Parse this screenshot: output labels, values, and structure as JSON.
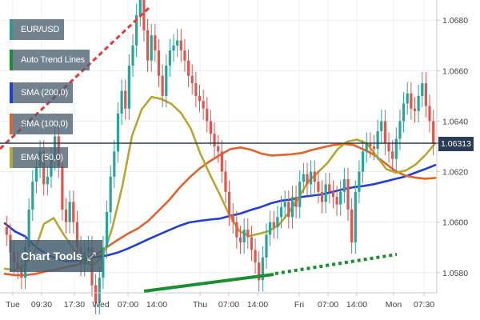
{
  "legend": [
    {
      "label": "EUR/USD",
      "color": "#2a9d8f"
    },
    {
      "label": "Auto Trend Lines",
      "color": "#1a8f2f"
    },
    {
      "label": "SMA (200,0)",
      "color": "#1f3fd6"
    },
    {
      "label": "SMA (100,0)",
      "color": "#e2622b"
    },
    {
      "label": "EMA (50,0)",
      "color": "#b8a630"
    }
  ],
  "chart_tools_label": "Chart Tools",
  "current_price_label": "1.06313",
  "chart_data": {
    "type": "candlestick",
    "symbol": "EUR/USD",
    "y_ticks": [
      "1.0680",
      "1.0660",
      "1.0640",
      "1.0620",
      "1.0600",
      "1.0580"
    ],
    "x_ticks": [
      "Tue",
      "09:30",
      "17:30",
      "Wed",
      "07:00",
      "14:00",
      "Thu",
      "07:00",
      "14:00",
      "Fri",
      "07:00",
      "14:00",
      "Mon",
      "07:30"
    ],
    "ylim": [
      1.0572,
      1.0688
    ],
    "current_price": 1.06313,
    "grid": true,
    "colors": {
      "up": "#26a69a",
      "down": "#e0554c",
      "sma200": "#1f3fd6",
      "sma100": "#e2622b",
      "ema50": "#b8a630",
      "trend_up": "#1a8f2f",
      "trend_resistance": "#e53935"
    },
    "close": [
      1.0595,
      1.0588,
      1.0584,
      1.0582,
      1.0578,
      1.059,
      1.0605,
      1.0616,
      1.0622,
      1.0628,
      1.0615,
      1.0618,
      1.0625,
      1.0634,
      1.0622,
      1.0605,
      1.06,
      1.0608,
      1.06,
      1.059,
      1.0583,
      1.0588,
      1.059,
      1.0575,
      1.0568,
      1.0578,
      1.059,
      1.0604,
      1.0618,
      1.0628,
      1.0643,
      1.0652,
      1.0645,
      1.0662,
      1.067,
      1.0682,
      1.0688,
      1.0676,
      1.0664,
      1.0674,
      1.0668,
      1.0658,
      1.065,
      1.0662,
      1.0668,
      1.067,
      1.0672,
      1.0668,
      1.0664,
      1.0658,
      1.0655,
      1.065,
      1.0648,
      1.0645,
      1.064,
      1.0635,
      1.063,
      1.0628,
      1.062,
      1.0612,
      1.0603,
      1.06,
      1.0594,
      1.0592,
      1.0597,
      1.0594,
      1.0589,
      1.0584,
      1.0577,
      1.0586,
      1.0595,
      1.06,
      1.0598,
      1.0602,
      1.0606,
      1.0608,
      1.0602,
      1.061,
      1.0606,
      1.0616,
      1.0619,
      1.0615,
      1.062,
      1.0616,
      1.0612,
      1.0608,
      1.0615,
      1.0612,
      1.061,
      1.0607,
      1.0612,
      1.0617,
      1.0605,
      1.0592,
      1.0612,
      1.062,
      1.0628,
      1.0631,
      1.063,
      1.0629,
      1.0636,
      1.064,
      1.0631,
      1.0628,
      1.0625,
      1.0633,
      1.064,
      1.0647,
      1.0651,
      1.0645,
      1.0644,
      1.065,
      1.0655,
      1.0646,
      1.064,
      1.0631
    ],
    "sma200": [
      1.05995,
      1.05963,
      1.05943,
      1.05902,
      1.05875,
      1.05856,
      1.05845,
      1.05847,
      1.05853,
      1.05862,
      1.05868,
      1.05879,
      1.05895,
      1.05913,
      1.05932,
      1.0595,
      1.05968,
      1.05985,
      1.05999,
      1.06005,
      1.0601,
      1.06014,
      1.06025,
      1.06034,
      1.06048,
      1.0606,
      1.06075,
      1.06085,
      1.0609,
      1.061,
      1.06105,
      1.0611,
      1.0612,
      1.0613,
      1.06138,
      1.06143,
      1.0615,
      1.0616,
      1.0617,
      1.0618,
      1.06195,
      1.0621,
      1.06226
    ],
    "sma100": [
      1.05795,
      1.0579,
      1.0579,
      1.05795,
      1.05805,
      1.05812,
      1.05822,
      1.0583,
      1.0585,
      1.05874,
      1.05902,
      1.05929,
      1.05954,
      1.05975,
      1.06005,
      1.06045,
      1.06086,
      1.06134,
      1.06176,
      1.06212,
      1.06241,
      1.06266,
      1.06289,
      1.06296,
      1.06287,
      1.06272,
      1.06264,
      1.06266,
      1.06269,
      1.06274,
      1.06286,
      1.06296,
      1.06305,
      1.0631,
      1.06306,
      1.06288,
      1.06268,
      1.06237,
      1.06206,
      1.06185,
      1.06177,
      1.06172,
      1.06175
    ],
    "ema50": [
      1.05815,
      1.05811,
      1.0583,
      1.0588,
      1.05993,
      1.06016,
      1.05952,
      1.05895,
      1.05843,
      1.0583,
      1.05862,
      1.05979,
      1.06139,
      1.06342,
      1.06447,
      1.06496,
      1.06488,
      1.06469,
      1.06433,
      1.06372,
      1.06271,
      1.06186,
      1.06108,
      1.06025,
      1.05964,
      1.05945,
      1.05954,
      1.05965,
      1.05988,
      1.06036,
      1.06094,
      1.0616,
      1.06197,
      1.06235,
      1.06288,
      1.06319,
      1.06327,
      1.06312,
      1.06262,
      1.0621,
      1.06196,
      1.06205,
      1.06228,
      1.06266,
      1.06312
    ]
  }
}
